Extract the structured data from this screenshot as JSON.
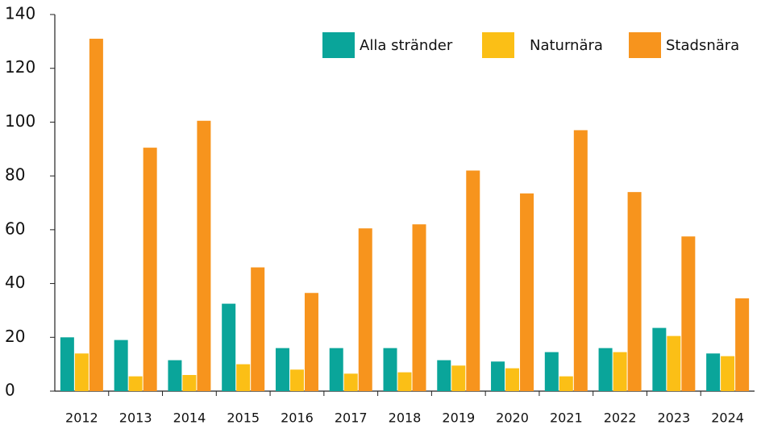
{
  "chart_data": {
    "type": "bar",
    "categories": [
      "2012",
      "2013",
      "2014",
      "2015",
      "2016",
      "2017",
      "2018",
      "2019",
      "2020",
      "2021",
      "2022",
      "2023",
      "2024"
    ],
    "series": [
      {
        "name": "Alla stränder",
        "color": "#0aa59a",
        "values": [
          20,
          19,
          11.5,
          32.5,
          16,
          16,
          16,
          11.5,
          11,
          14.5,
          16,
          23.5,
          14
        ]
      },
      {
        "name": "Naturnära",
        "color": "#fbbf16",
        "values": [
          14,
          5.5,
          6,
          10,
          8,
          6.5,
          7,
          9.5,
          8.5,
          5.5,
          14.5,
          20.5,
          13
        ]
      },
      {
        "name": "Stadsnära",
        "color": "#f7941d",
        "values": [
          131,
          90.5,
          100.5,
          46,
          36.5,
          60.5,
          62,
          82,
          73.5,
          97,
          74,
          57.5,
          34.5
        ]
      }
    ],
    "ylim": [
      0,
      140
    ],
    "yticks": [
      0,
      20,
      40,
      60,
      80,
      100,
      120,
      140
    ],
    "grid": false,
    "legend": "top-right"
  }
}
